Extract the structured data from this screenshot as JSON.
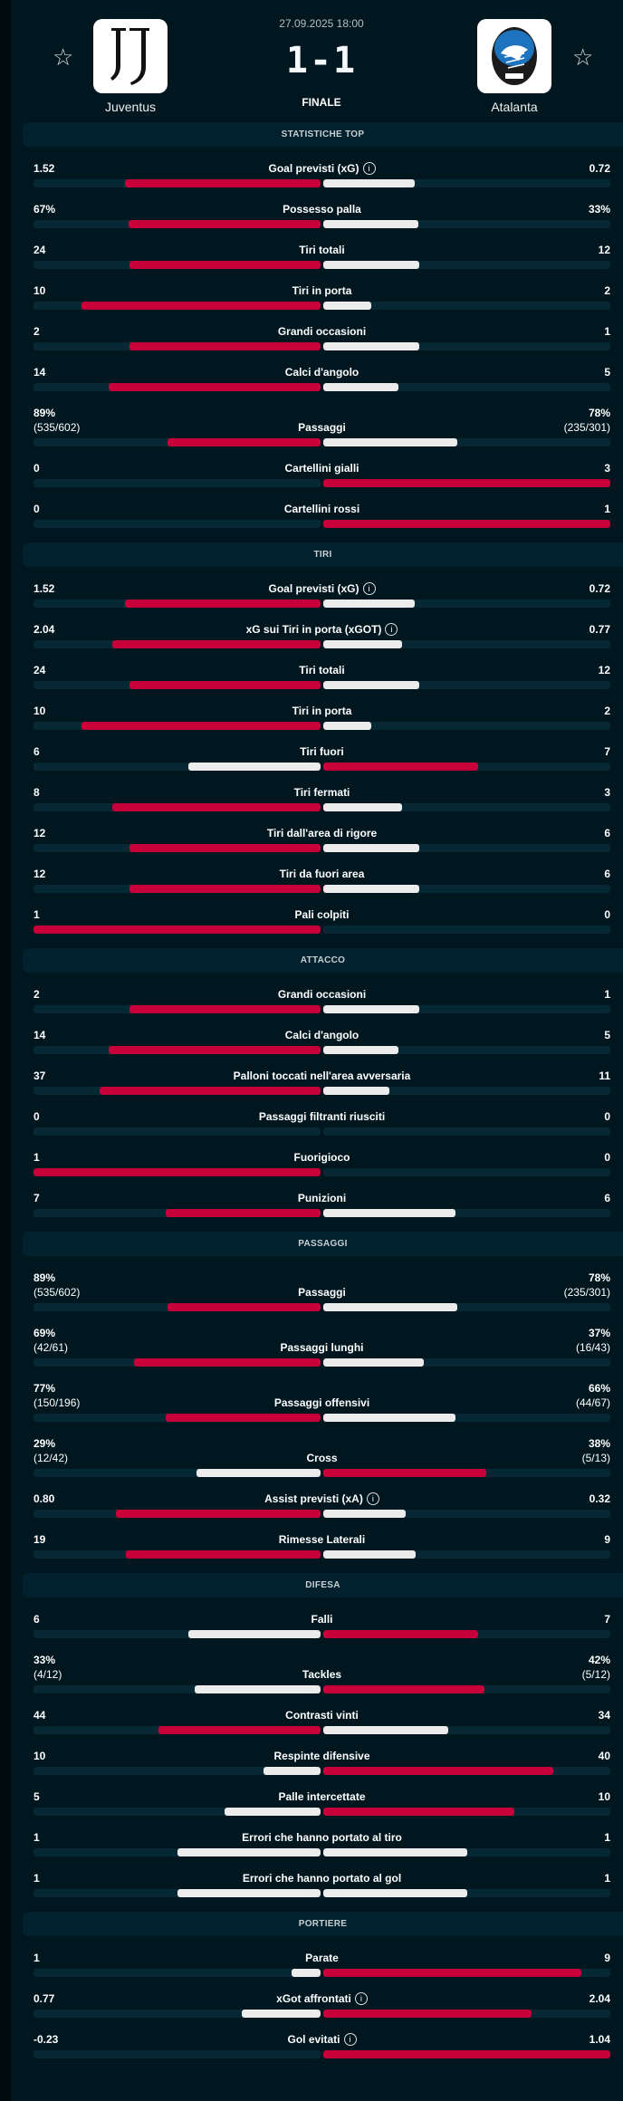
{
  "match": {
    "date": "27.09.2025 18:00",
    "score": "1-1",
    "status": "FINALE",
    "home": {
      "name": "Juventus",
      "icon": "star-icon"
    },
    "away": {
      "name": "Atalanta",
      "icon": "star-icon"
    }
  },
  "colors": {
    "winner": "#c8003a",
    "loser": "#ececec",
    "track": "#062835"
  },
  "sections": [
    {
      "title": "STATISTICHE TOP",
      "rows": [
        {
          "label": "Goal previsti (xG)",
          "info": true,
          "left": "1.52",
          "right": "0.72",
          "share": 0.68
        },
        {
          "label": "Possesso palla",
          "left": "67%",
          "right": "33%",
          "share": 0.67
        },
        {
          "label": "Tiri totali",
          "left": "24",
          "right": "12",
          "share": 0.667
        },
        {
          "label": "Tiri in porta",
          "left": "10",
          "right": "2",
          "share": 0.833
        },
        {
          "label": "Grandi occasioni",
          "left": "2",
          "right": "1",
          "share": 0.667
        },
        {
          "label": "Calci d'angolo",
          "left": "14",
          "right": "5",
          "share": 0.737
        },
        {
          "label": "Passaggi",
          "left": "89%",
          "left_sub": "(535/602)",
          "right": "78%",
          "right_sub": "(235/301)",
          "share": 0.533
        },
        {
          "label": "Cartellini gialli",
          "left": "0",
          "right": "3",
          "share": 0
        },
        {
          "label": "Cartellini rossi",
          "left": "0",
          "right": "1",
          "share": 0
        }
      ]
    },
    {
      "title": "TIRI",
      "rows": [
        {
          "label": "Goal previsti (xG)",
          "info": true,
          "left": "1.52",
          "right": "0.72",
          "share": 0.68
        },
        {
          "label": "xG sui Tiri in porta (xGOT)",
          "info": true,
          "left": "2.04",
          "right": "0.77",
          "share": 0.726
        },
        {
          "label": "Tiri totali",
          "left": "24",
          "right": "12",
          "share": 0.667
        },
        {
          "label": "Tiri in porta",
          "left": "10",
          "right": "2",
          "share": 0.833
        },
        {
          "label": "Tiri fuori",
          "left": "6",
          "right": "7",
          "share": 0.462
        },
        {
          "label": "Tiri fermati",
          "left": "8",
          "right": "3",
          "share": 0.727
        },
        {
          "label": "Tiri dall'area di rigore",
          "left": "12",
          "right": "6",
          "share": 0.667
        },
        {
          "label": "Tiri da fuori area",
          "left": "12",
          "right": "6",
          "share": 0.667
        },
        {
          "label": "Pali colpiti",
          "left": "1",
          "right": "0",
          "share": 1
        }
      ]
    },
    {
      "title": "ATTACCO",
      "rows": [
        {
          "label": "Grandi occasioni",
          "left": "2",
          "right": "1",
          "share": 0.667
        },
        {
          "label": "Calci d'angolo",
          "left": "14",
          "right": "5",
          "share": 0.737
        },
        {
          "label": "Palloni toccati nell'area avversaria",
          "left": "37",
          "right": "11",
          "share": 0.771
        },
        {
          "label": "Passaggi filtranti riusciti",
          "left": "0",
          "right": "0",
          "share": null
        },
        {
          "label": "Fuorigioco",
          "left": "1",
          "right": "0",
          "share": 1
        },
        {
          "label": "Punizioni",
          "left": "7",
          "right": "6",
          "share": 0.538
        }
      ]
    },
    {
      "title": "PASSAGGI",
      "rows": [
        {
          "label": "Passaggi",
          "left": "89%",
          "left_sub": "(535/602)",
          "right": "78%",
          "right_sub": "(235/301)",
          "share": 0.533
        },
        {
          "label": "Passaggi lunghi",
          "left": "69%",
          "left_sub": "(42/61)",
          "right": "37%",
          "right_sub": "(16/43)",
          "share": 0.651
        },
        {
          "label": "Passaggi offensivi",
          "left": "77%",
          "left_sub": "(150/196)",
          "right": "66%",
          "right_sub": "(44/67)",
          "share": 0.538
        },
        {
          "label": "Cross",
          "left": "29%",
          "left_sub": "(12/42)",
          "right": "38%",
          "right_sub": "(5/13)",
          "share": 0.433
        },
        {
          "label": "Assist previsti (xA)",
          "info": true,
          "left": "0.80",
          "right": "0.32",
          "share": 0.714
        },
        {
          "label": "Rimesse Laterali",
          "left": "19",
          "right": "9",
          "share": 0.679
        }
      ]
    },
    {
      "title": "DIFESA",
      "rows": [
        {
          "label": "Falli",
          "left": "6",
          "right": "7",
          "share": 0.462
        },
        {
          "label": "Tackles",
          "left": "33%",
          "left_sub": "(4/12)",
          "right": "42%",
          "right_sub": "(5/12)",
          "share": 0.44
        },
        {
          "label": "Contrasti vinti",
          "left": "44",
          "right": "34",
          "share": 0.564
        },
        {
          "label": "Respinte difensive",
          "left": "10",
          "right": "40",
          "share": 0.2
        },
        {
          "label": "Palle intercettate",
          "left": "5",
          "right": "10",
          "share": 0.333
        },
        {
          "label": "Errori che hanno portato al tiro",
          "left": "1",
          "right": "1",
          "share": 0.5
        },
        {
          "label": "Errori che hanno portato al gol",
          "left": "1",
          "right": "1",
          "share": 0.5
        }
      ]
    },
    {
      "title": "PORTIERE",
      "rows": [
        {
          "label": "Parate",
          "left": "1",
          "right": "9",
          "share": 0.1
        },
        {
          "label": "xGot affrontati",
          "info": true,
          "left": "0.77",
          "right": "2.04",
          "share": 0.274
        },
        {
          "label": "Gol evitati",
          "info": true,
          "left": "-0.23",
          "right": "1.04",
          "share": 0
        }
      ]
    }
  ]
}
